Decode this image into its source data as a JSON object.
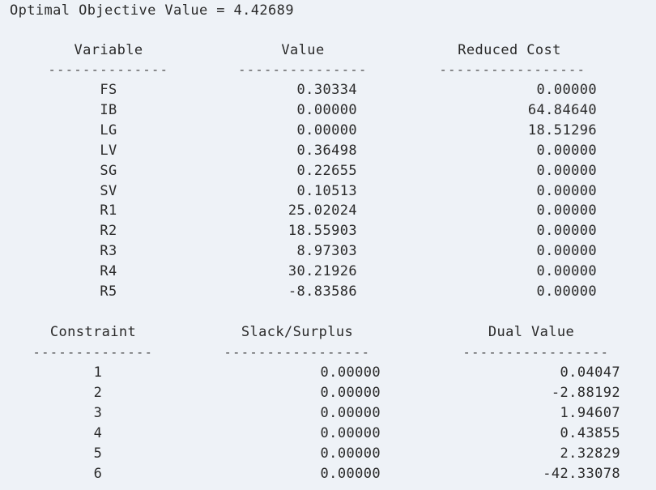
{
  "objective": "Optimal Objective Value = 4.42689",
  "variables": {
    "headers": {
      "variable": "Variable",
      "value": "Value",
      "reduced_cost": "Reduced Cost"
    },
    "rows": [
      {
        "name": "FS",
        "value": "0.30334",
        "reduced_cost": "0.00000"
      },
      {
        "name": "IB",
        "value": "0.00000",
        "reduced_cost": "64.84640"
      },
      {
        "name": "LG",
        "value": "0.00000",
        "reduced_cost": "18.51296"
      },
      {
        "name": "LV",
        "value": "0.36498",
        "reduced_cost": "0.00000"
      },
      {
        "name": "SG",
        "value": "0.22655",
        "reduced_cost": "0.00000"
      },
      {
        "name": "SV",
        "value": "0.10513",
        "reduced_cost": "0.00000"
      },
      {
        "name": "R1",
        "value": "25.02024",
        "reduced_cost": "0.00000"
      },
      {
        "name": "R2",
        "value": "18.55903",
        "reduced_cost": "0.00000"
      },
      {
        "name": "R3",
        "value": "8.97303",
        "reduced_cost": "0.00000"
      },
      {
        "name": "R4",
        "value": "30.21926",
        "reduced_cost": "0.00000"
      },
      {
        "name": "R5",
        "value": "-8.83586",
        "reduced_cost": "0.00000"
      }
    ]
  },
  "constraints": {
    "headers": {
      "constraint": "Constraint",
      "slack": "Slack/Surplus",
      "dual": "Dual Value"
    },
    "rows": [
      {
        "id": "1",
        "slack": "0.00000",
        "dual": "0.04047"
      },
      {
        "id": "2",
        "slack": "0.00000",
        "dual": "-2.88192"
      },
      {
        "id": "3",
        "slack": "0.00000",
        "dual": "1.94607"
      },
      {
        "id": "4",
        "slack": "0.00000",
        "dual": "0.43855"
      },
      {
        "id": "5",
        "slack": "0.00000",
        "dual": "2.32829"
      },
      {
        "id": "6",
        "slack": "0.00000",
        "dual": "-42.33078"
      }
    ]
  }
}
